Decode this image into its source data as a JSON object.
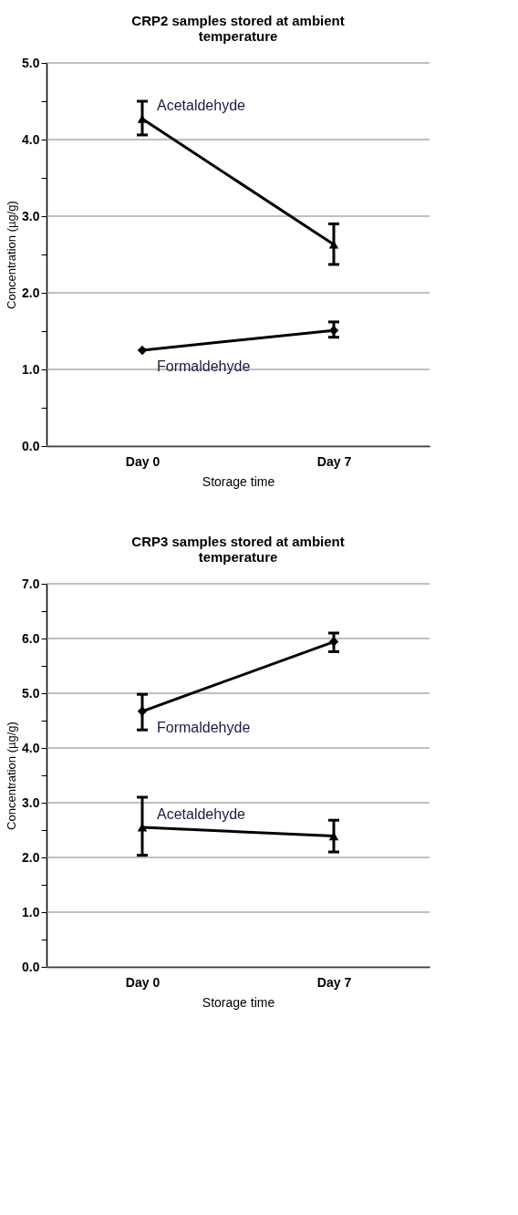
{
  "chart_data": [
    {
      "type": "line",
      "title": "CRP2 samples stored at ambient temperature",
      "xlabel": "Storage time",
      "ylabel": "Concentration (µg/g)",
      "categories": [
        "Day 0",
        "Day 7"
      ],
      "series": [
        {
          "name": "Acetaldehyde",
          "color": "#000000",
          "marker": "triangle",
          "values": [
            4.27,
            2.63
          ],
          "errors": [
            [
              4.06,
              4.5
            ],
            [
              2.37,
              2.9
            ]
          ]
        },
        {
          "name": "Formaldehyde",
          "color": "#000000",
          "marker": "diamond",
          "values": [
            1.25,
            1.51
          ],
          "errors": [
            null,
            [
              1.42,
              1.62
            ]
          ]
        }
      ],
      "ylim": [
        0,
        5
      ],
      "yticks": [
        {
          "value": 0,
          "label": "0.0"
        },
        {
          "value": 0.5,
          "label": null
        },
        {
          "value": 1,
          "label": "1.0"
        },
        {
          "value": 1.5,
          "label": null
        },
        {
          "value": 2,
          "label": "2.0"
        },
        {
          "value": 2.5,
          "label": null
        },
        {
          "value": 3,
          "label": "3.0"
        },
        {
          "value": 3.5,
          "label": null
        },
        {
          "value": 4,
          "label": "4.0"
        },
        {
          "value": 4.5,
          "label": null
        },
        {
          "value": 5,
          "label": "5.0"
        }
      ],
      "grid": "y",
      "line_style": "solid"
    },
    {
      "type": "line",
      "title": "CRP3 samples stored at ambient temperature",
      "xlabel": "Storage time",
      "ylabel": "Concentration (µg/g)",
      "categories": [
        "Day 0",
        "Day 7"
      ],
      "series": [
        {
          "name": "Formaldehyde",
          "color": "#000000",
          "marker": "diamond",
          "values": [
            4.67,
            5.94
          ],
          "errors": [
            [
              4.33,
              4.98
            ],
            [
              5.76,
              6.1
            ]
          ]
        },
        {
          "name": "Acetaldehyde",
          "color": "#000000",
          "marker": "triangle",
          "values": [
            2.55,
            2.39
          ],
          "errors": [
            [
              2.04,
              3.1
            ],
            [
              2.1,
              2.68
            ]
          ]
        }
      ],
      "ylim": [
        0,
        7
      ],
      "yticks": [
        {
          "value": 0,
          "label": "0.0"
        },
        {
          "value": 0.5,
          "label": null
        },
        {
          "value": 1,
          "label": "1.0"
        },
        {
          "value": 1.5,
          "label": null
        },
        {
          "value": 2,
          "label": "2.0"
        },
        {
          "value": 2.5,
          "label": null
        },
        {
          "value": 3,
          "label": "3.0"
        },
        {
          "value": 3.5,
          "label": null
        },
        {
          "value": 4,
          "label": "4.0"
        },
        {
          "value": 4.5,
          "label": null
        },
        {
          "value": 5,
          "label": "5.0"
        },
        {
          "value": 5.5,
          "label": null
        },
        {
          "value": 6,
          "label": "6.0"
        },
        {
          "value": 6.5,
          "label": null
        },
        {
          "value": 7,
          "label": "7.0"
        }
      ],
      "grid": "y",
      "line_style": "solid"
    }
  ]
}
